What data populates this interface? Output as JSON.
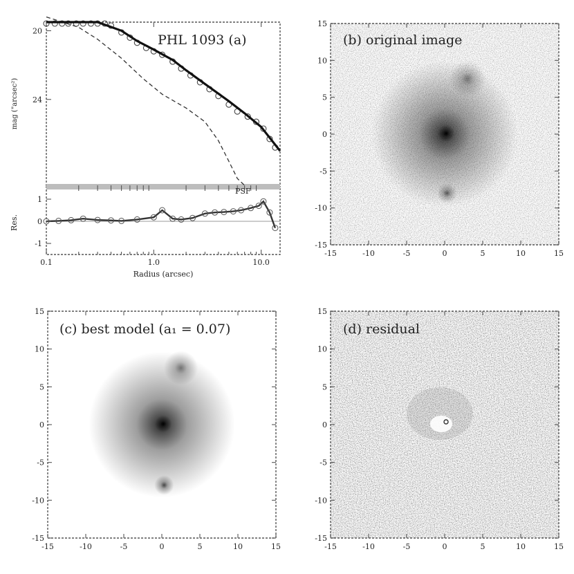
{
  "chart_data": [
    {
      "panel": "a",
      "type": "scatter",
      "title": "PHL 1093 (a)",
      "xlabel": "Radius (arcsec)",
      "x_scale": "log",
      "xlim": [
        0.1,
        15
      ],
      "x_ticks": [
        0.1,
        1.0,
        10.0
      ],
      "x_tick_labels": [
        "0.1",
        "1.0",
        "10.0"
      ],
      "top": {
        "ylabel": "mag (\"arcsec²)",
        "ylim": [
          19.5,
          29.0
        ],
        "y_ticks": [
          20,
          24
        ],
        "y_tick_labels": [
          "20",
          "24"
        ],
        "annotations": [
          "PSF"
        ],
        "series": [
          {
            "role": "data-points",
            "x": [
              0.1,
              0.12,
              0.14,
              0.16,
              0.19,
              0.22,
              0.26,
              0.3,
              0.35,
              0.4,
              0.5,
              0.6,
              0.7,
              0.85,
              1.0,
              1.2,
              1.5,
              1.8,
              2.2,
              2.7,
              3.3,
              4.0,
              5.0,
              6.0,
              7.5,
              9.0,
              10.5,
              12.0,
              13.5
            ],
            "y": [
              16.6,
              16.8,
              17.0,
              17.3,
              17.6,
              18.0,
              18.5,
              19.0,
              19.4,
              19.7,
              20.1,
              20.4,
              20.7,
              21.0,
              21.2,
              21.4,
              21.8,
              22.2,
              22.6,
              23.0,
              23.4,
              23.8,
              24.3,
              24.7,
              25.0,
              25.3,
              25.7,
              26.3,
              26.8
            ]
          },
          {
            "role": "best-model",
            "x": [
              0.1,
              0.15,
              0.2,
              0.3,
              0.5,
              0.7,
              1.0,
              1.5,
              2.0,
              3.0,
              5.0,
              7.0,
              10.0,
              15.0
            ],
            "y": [
              16.6,
              17.0,
              17.7,
              18.9,
              20.0,
              20.6,
              21.1,
              21.7,
              22.3,
              23.1,
              24.1,
              24.8,
              25.6,
              27.0
            ]
          },
          {
            "role": "psf",
            "x": [
              0.1,
              0.2,
              0.3,
              0.5,
              0.8,
              1.2,
              2.0,
              3.0,
              4.0,
              5.0,
              6.0,
              7.0
            ],
            "y": [
              19.2,
              19.8,
              20.5,
              21.6,
              22.8,
              23.7,
              24.5,
              25.3,
              26.4,
              27.6,
              28.6,
              29.0
            ]
          }
        ]
      },
      "bottom": {
        "ylabel": "Res.",
        "ylim": [
          -1.5,
          1.5
        ],
        "y_ticks": [
          -1,
          0,
          1
        ],
        "y_tick_labels": [
          "-1",
          "0",
          "1"
        ],
        "x": [
          0.1,
          0.13,
          0.17,
          0.22,
          0.3,
          0.4,
          0.5,
          0.7,
          1.0,
          1.2,
          1.5,
          1.8,
          2.3,
          3.0,
          3.7,
          4.5,
          5.5,
          6.5,
          8.0,
          9.5,
          10.5,
          12.0,
          13.5
        ],
        "y": [
          0.0,
          0.02,
          0.05,
          0.12,
          0.06,
          0.04,
          0.02,
          0.08,
          0.18,
          0.5,
          0.12,
          0.08,
          0.15,
          0.35,
          0.4,
          0.42,
          0.45,
          0.5,
          0.6,
          0.7,
          0.9,
          0.4,
          -0.3
        ]
      }
    },
    {
      "panel": "b",
      "type": "heatmap",
      "title": "(b) original image",
      "xlim": [
        -15,
        15
      ],
      "ylim": [
        -15,
        15
      ],
      "ticks": [
        -15,
        -10,
        -5,
        0,
        5,
        10,
        15
      ],
      "tick_labels": [
        "-15",
        "-10",
        "-5",
        "0",
        "5",
        "10",
        "15"
      ],
      "sources": [
        {
          "x": 0,
          "y": 0,
          "size": 6,
          "strength": 0.8
        },
        {
          "x": 0.2,
          "y": 0.1,
          "size": 0.7,
          "strength": 1.0
        },
        {
          "x": 3,
          "y": 7.5,
          "size": 1.5,
          "strength": 0.45
        },
        {
          "x": 0.3,
          "y": -8,
          "size": 0.8,
          "strength": 0.6
        }
      ],
      "noise": true
    },
    {
      "panel": "c",
      "type": "heatmap",
      "title": "(c) best model (a₁ = 0.07)",
      "xlim": [
        -15,
        15
      ],
      "ylim": [
        -15,
        15
      ],
      "ticks": [
        -15,
        -10,
        -5,
        0,
        5,
        10,
        15
      ],
      "tick_labels": [
        "-15",
        "-10",
        "-5",
        "0",
        "5",
        "10",
        "15"
      ],
      "sources": [
        {
          "x": 0,
          "y": 0,
          "size": 6,
          "strength": 0.85
        },
        {
          "x": 0.2,
          "y": 0.1,
          "size": 0.7,
          "strength": 1.0
        },
        {
          "x": 2.5,
          "y": 7.5,
          "size": 1.4,
          "strength": 0.5
        },
        {
          "x": 0.3,
          "y": -8,
          "size": 0.8,
          "strength": 0.7
        }
      ],
      "noise": false
    },
    {
      "panel": "d",
      "type": "heatmap",
      "title": "(d) residual",
      "xlim": [
        -15,
        15
      ],
      "ylim": [
        -15,
        15
      ],
      "ticks": [
        -15,
        -10,
        -5,
        0,
        5,
        10,
        15
      ],
      "tick_labels": [
        "-15",
        "-10",
        "-5",
        "0",
        "5",
        "10",
        "15"
      ],
      "sources": [],
      "noise": true
    }
  ]
}
